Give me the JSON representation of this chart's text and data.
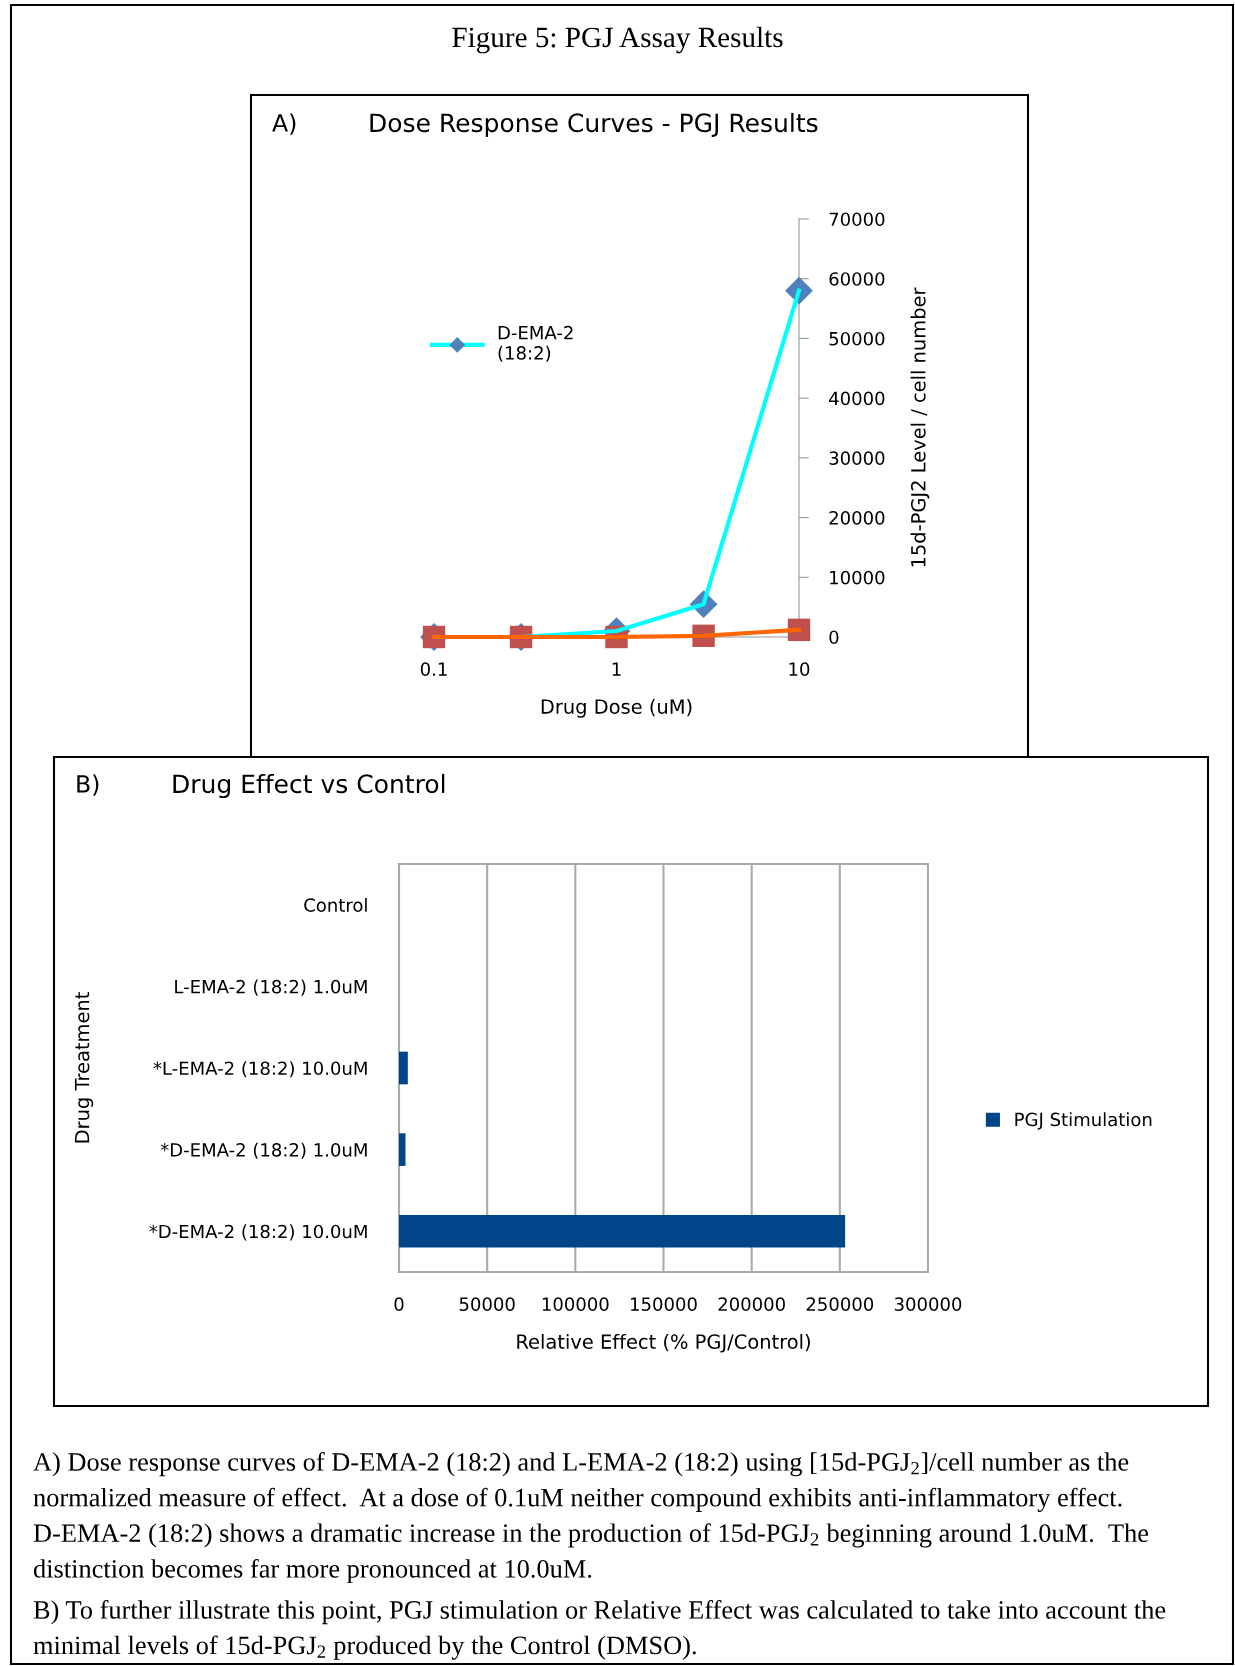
{
  "chart_data": [
    {
      "type": "line",
      "title": "Dose Response Curves - PGJ Results",
      "xlabel": "Drug Dose (uM)",
      "y2label": "15d-PGJ2 Level / cell number",
      "annotations": [
        "Figure 5: PGJ Assay Results",
        "A)"
      ],
      "log": "x",
      "xlim": [
        0.1,
        10
      ],
      "xticks": [
        0.1,
        1,
        10
      ],
      "y2lim": [
        0,
        70000
      ],
      "y2ticks": [
        0,
        10000,
        20000,
        30000,
        40000,
        50000,
        60000,
        70000
      ],
      "marker": "diamond",
      "legend": "left",
      "grid": false,
      "series": [
        {
          "name": "D-EMA-2\n(18:2)",
          "axis": "y2",
          "color": "#00ffff",
          "colors": [
            "#4f81bd",
            "#4f81bd",
            "#4f81bd",
            "#4f81bd",
            "#4f81bd"
          ],
          "x": [
            0.1,
            0.3,
            1,
            3,
            10
          ],
          "values": [
            0,
            0,
            1000,
            5500,
            58000
          ]
        },
        {
          "axis": "y2",
          "marker": "square",
          "color": "#ff6600",
          "colors": [
            "#c0504d",
            "#c0504d",
            "#c0504d",
            "#c0504d",
            "#c0504d"
          ],
          "x": [
            0.1,
            0.3,
            1,
            3,
            10
          ],
          "values": [
            0,
            0,
            0,
            200,
            1200
          ]
        }
      ]
    },
    {
      "type": "bar",
      "orientation": "horizontal",
      "title": "Drug Effect vs Control",
      "xlabel": "Relative Effect (% PGJ/Control)",
      "ylabel": "Drug Treatment",
      "annotations": [
        "B)",
        "A) Dose response curves of D-EMA-2 (18:2) and L-EMA-2 (18:2) using [15d-PGJ$_{2}$]/cell number as the normalized measure of effect.  At a dose of 0.1uM neither compound exhibits anti-inflammatory effect.  D-EMA-2 (18:2) shows a dramatic increase in the production of 15d-PGJ$_{2}$ beginning around 1.0uM.  The distinction becomes far more pronounced at 10.0uM.",
        "B) To further illustrate this point, PGJ stimulation or Relative Effect was calculated to take into account the minimal levels of 15d-PGJ$_{2}$ produced by the Control (DMSO)."
      ],
      "categories": [
        "Control",
        "L-EMA-2 (18:2) 1.0uM",
        "*L-EMA-2 (18:2) 10.0uM",
        "*D-EMA-2 (18:2) 1.0uM",
        "*D-EMA-2 (18:2) 10.0uM"
      ],
      "xlim": [
        0,
        300000
      ],
      "xticks": [
        0,
        50000,
        100000,
        150000,
        200000,
        250000,
        300000
      ],
      "grid": "x",
      "legend": "right",
      "series": [
        {
          "name": "PGJ Stimulation",
          "color": "#004489",
          "values": [
            null,
            null,
            5000,
            3700,
            253000
          ]
        }
      ]
    }
  ]
}
